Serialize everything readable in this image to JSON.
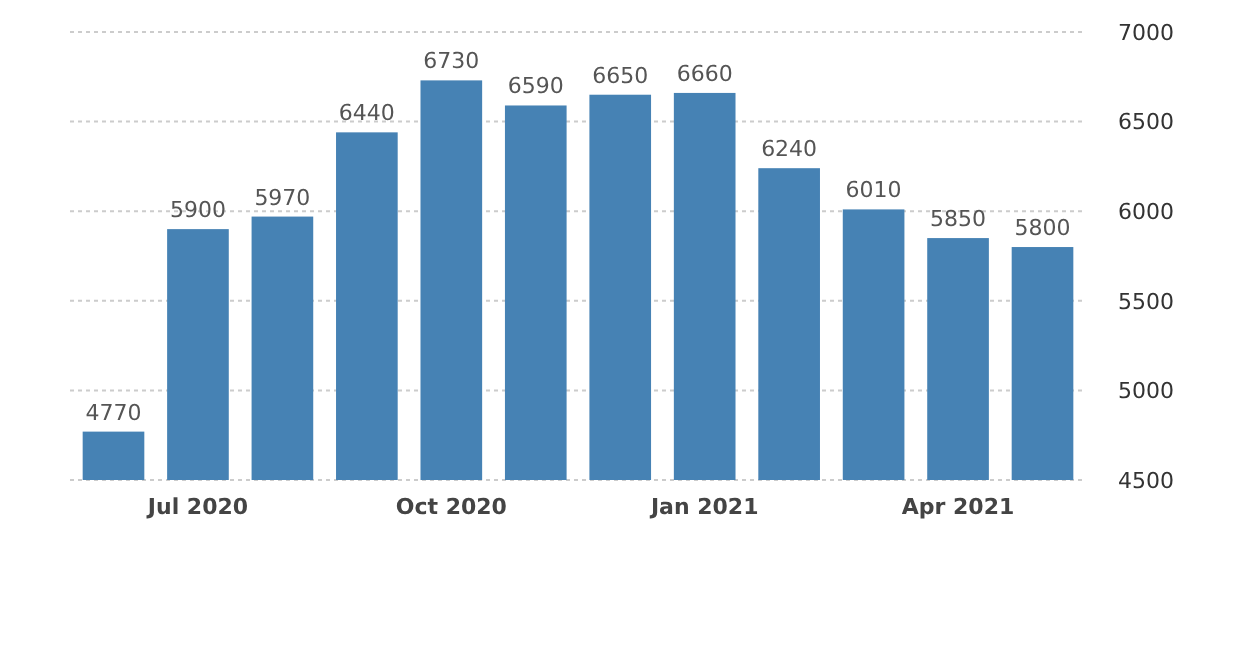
{
  "chart_data": {
    "type": "bar",
    "categories": [
      null,
      "Jul 2020",
      null,
      null,
      "Oct 2020",
      null,
      null,
      "Jan 2021",
      null,
      null,
      "Apr 2021",
      null
    ],
    "values": [
      4770,
      5900,
      5970,
      6440,
      6730,
      6590,
      6650,
      6660,
      6240,
      6010,
      5850,
      5800
    ],
    "color": "#4682b4",
    "data_labels": true,
    "ylim": [
      4500,
      7000
    ],
    "yticks": [
      4500,
      5000,
      5500,
      6000,
      6500,
      7000
    ],
    "grid": "y"
  }
}
